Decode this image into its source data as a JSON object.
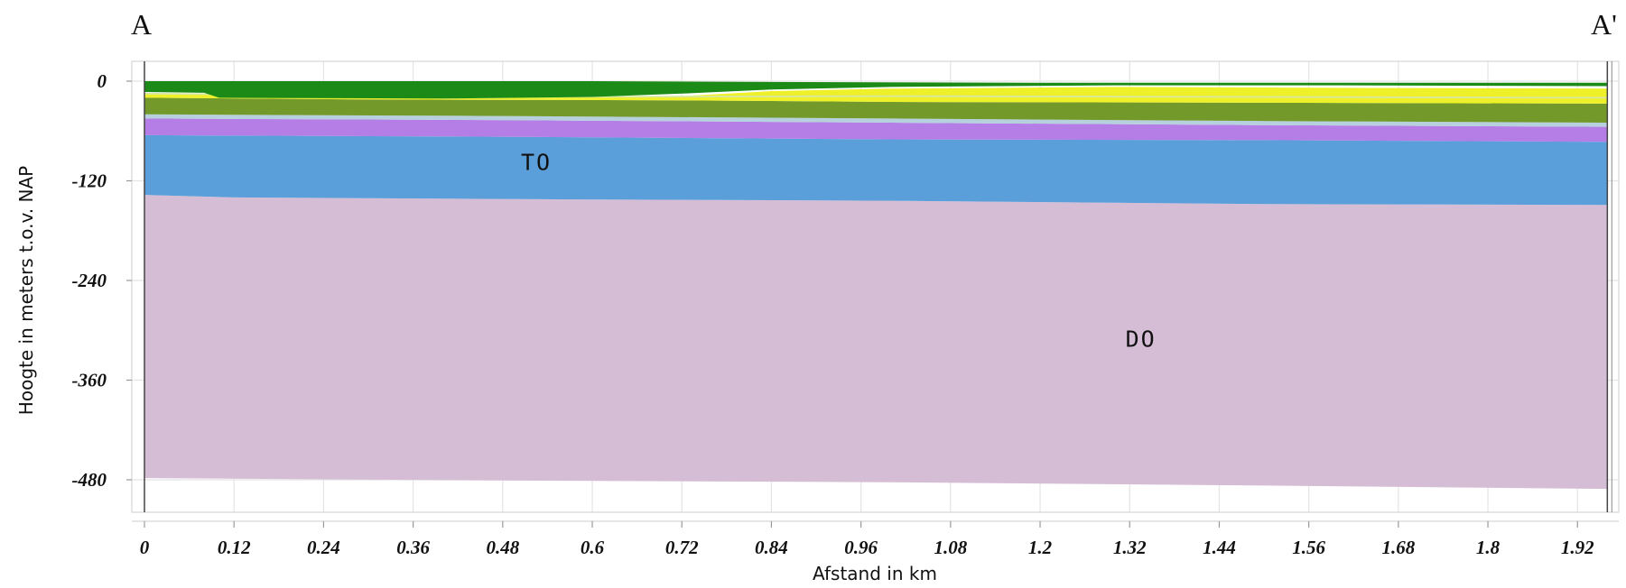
{
  "chart_data": {
    "type": "area",
    "section_start_label": "A",
    "section_end_label": "A'",
    "xlabel": "Afstand in km",
    "ylabel": "Hoogte in meters t.o.v. NAP",
    "xlim": [
      0,
      1.96
    ],
    "ylim": [
      -500,
      0
    ],
    "x_ticks": [
      "0",
      "0.12",
      "0.24",
      "0.36",
      "0.48",
      "0.6",
      "0.72",
      "0.84",
      "0.96",
      "1.08",
      "1.2",
      "1.32",
      "1.44",
      "1.56",
      "1.68",
      "1.8",
      "1.92"
    ],
    "y_ticks": [
      "0",
      "-120",
      "-240",
      "-360",
      "-480"
    ],
    "grid": true,
    "layers": [
      {
        "name": "DO",
        "color": "#d5bdd6",
        "top": [
          [
            0,
            -137
          ],
          [
            0.12,
            -140
          ],
          [
            0.5,
            -142
          ],
          [
            1.0,
            -144
          ],
          [
            1.5,
            -148
          ],
          [
            1.96,
            -149
          ]
        ],
        "bottom": [
          [
            0,
            -478
          ],
          [
            0.5,
            -481
          ],
          [
            1.0,
            -483
          ],
          [
            1.5,
            -487
          ],
          [
            1.96,
            -491
          ]
        ]
      },
      {
        "name": "TO",
        "color": "#5a9fda",
        "top": [
          [
            0,
            -65
          ],
          [
            0.5,
            -67
          ],
          [
            1.0,
            -70
          ],
          [
            1.5,
            -71
          ],
          [
            1.96,
            -73
          ]
        ],
        "bottom": [
          [
            0,
            -137
          ],
          [
            0.12,
            -140
          ],
          [
            0.5,
            -142
          ],
          [
            1.0,
            -144
          ],
          [
            1.5,
            -148
          ],
          [
            1.96,
            -149
          ]
        ]
      },
      {
        "color": "#b57ee6",
        "top": [
          [
            0,
            -45
          ],
          [
            0.5,
            -47
          ],
          [
            1.0,
            -50
          ],
          [
            1.5,
            -53
          ],
          [
            1.96,
            -55
          ]
        ],
        "bottom": [
          [
            0,
            -65
          ],
          [
            0.5,
            -67
          ],
          [
            1.0,
            -70
          ],
          [
            1.5,
            -71
          ],
          [
            1.96,
            -73
          ]
        ]
      },
      {
        "color": "#b6d0de",
        "top": [
          [
            0,
            -40
          ],
          [
            0.5,
            -42
          ],
          [
            1.0,
            -45
          ],
          [
            1.5,
            -48
          ],
          [
            1.96,
            -50
          ]
        ],
        "bottom": [
          [
            0,
            -45
          ],
          [
            0.5,
            -47
          ],
          [
            1.0,
            -50
          ],
          [
            1.5,
            -53
          ],
          [
            1.96,
            -55
          ]
        ]
      },
      {
        "color": "#72992a",
        "top": [
          [
            0,
            -20
          ],
          [
            0.3,
            -22
          ],
          [
            0.7,
            -23
          ],
          [
            1.0,
            -25
          ],
          [
            1.5,
            -26
          ],
          [
            1.96,
            -27
          ]
        ],
        "bottom": [
          [
            0,
            -40
          ],
          [
            0.5,
            -42
          ],
          [
            1.0,
            -45
          ],
          [
            1.5,
            -48
          ],
          [
            1.96,
            -50
          ]
        ]
      },
      {
        "color": "#eef02a",
        "top": [
          [
            0,
            -15
          ],
          [
            0.1,
            -16
          ],
          [
            0.4,
            -21
          ],
          [
            0.72,
            -18
          ],
          [
            0.84,
            -12
          ],
          [
            1.0,
            -9
          ],
          [
            1.3,
            -7
          ],
          [
            1.6,
            -8
          ],
          [
            1.96,
            -9
          ]
        ],
        "bottom": [
          [
            0,
            -20
          ],
          [
            0.3,
            -22
          ],
          [
            0.7,
            -23
          ],
          [
            1.0,
            -25
          ],
          [
            1.5,
            -26
          ],
          [
            1.96,
            -27
          ]
        ]
      },
      {
        "color": "#d9e8a0",
        "top": [
          [
            0,
            -14
          ],
          [
            0.5,
            -18
          ],
          [
            1.0,
            -17
          ],
          [
            1.5,
            -18
          ],
          [
            1.96,
            -19
          ]
        ],
        "bottom": [
          [
            0,
            -16
          ],
          [
            0.5,
            -20
          ],
          [
            1.0,
            -19
          ],
          [
            1.5,
            -20
          ],
          [
            1.96,
            -21
          ]
        ]
      },
      {
        "color": "#1c8a16",
        "top": [
          [
            0,
            0
          ],
          [
            0.3,
            0
          ],
          [
            0.6,
            0
          ],
          [
            0.84,
            -1
          ],
          [
            1.2,
            -2
          ],
          [
            1.6,
            -2
          ],
          [
            1.96,
            -2
          ]
        ],
        "bottom": [
          [
            0,
            -13
          ],
          [
            0.08,
            -14
          ],
          [
            0.1,
            -20
          ],
          [
            0.4,
            -21
          ],
          [
            0.6,
            -19
          ],
          [
            0.72,
            -15
          ],
          [
            0.84,
            -10
          ],
          [
            1.0,
            -7
          ],
          [
            1.3,
            -5
          ],
          [
            1.6,
            -5
          ],
          [
            1.96,
            -6
          ]
        ]
      }
    ],
    "annotations": [
      {
        "text": "TO",
        "x": 0.525,
        "y": -107
      },
      {
        "text": "DO",
        "x": 1.335,
        "y": -320
      }
    ]
  }
}
